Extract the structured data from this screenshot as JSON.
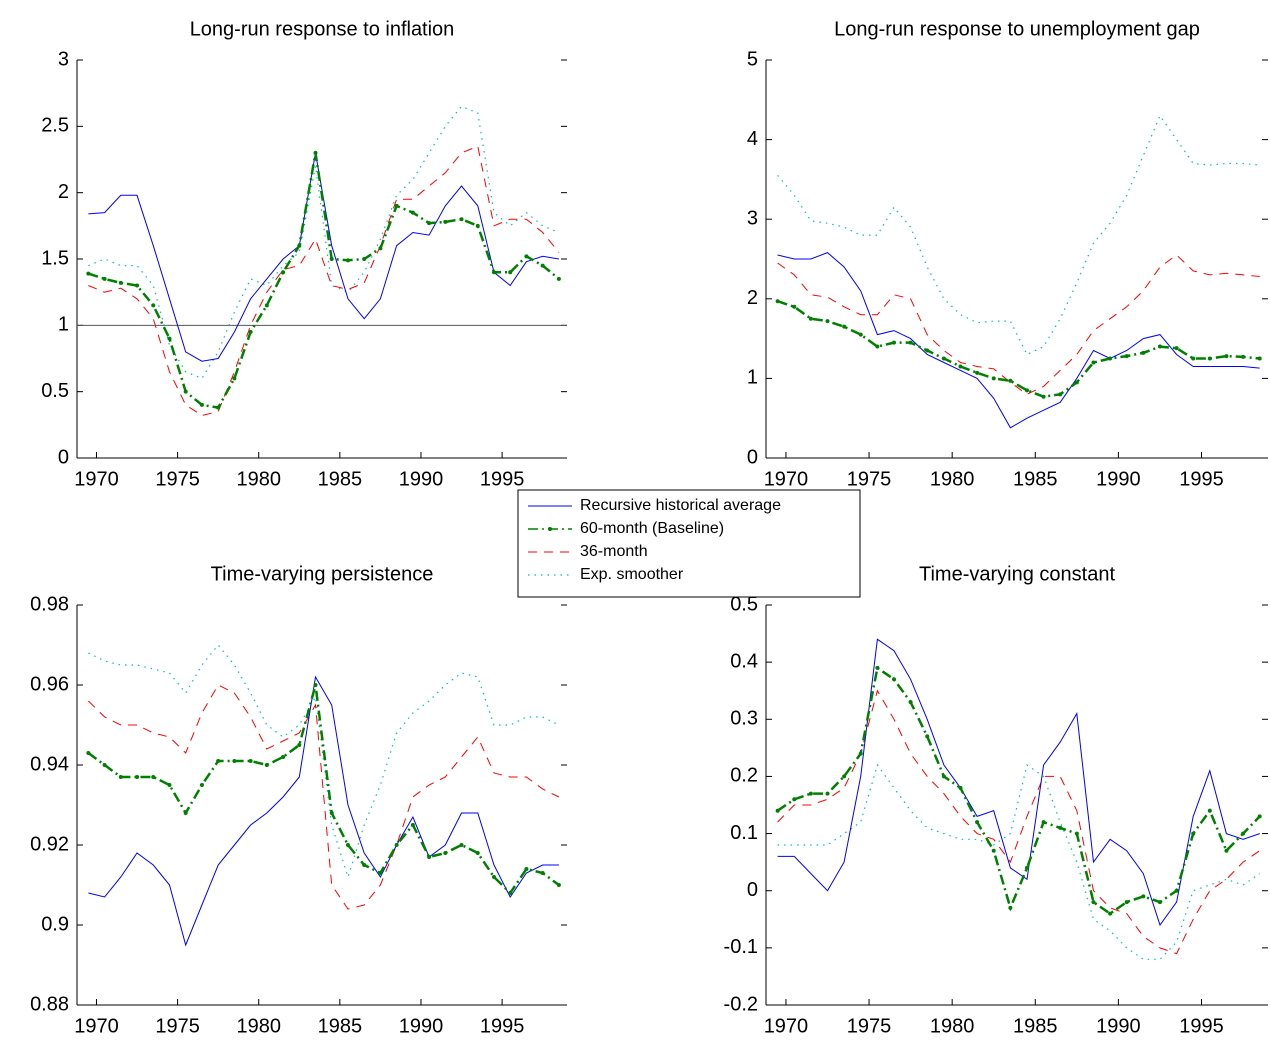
{
  "chart_data": [
    {
      "type": "line",
      "title": "Long-run response to inflation",
      "x": [
        1969.5,
        1970.5,
        1971.5,
        1972.5,
        1973.5,
        1974.5,
        1975.5,
        1976.5,
        1977.5,
        1978.5,
        1979.5,
        1980.5,
        1981.5,
        1982.5,
        1983.5,
        1984.5,
        1985.5,
        1986.5,
        1987.5,
        1988.5,
        1989.5,
        1990.5,
        1991.5,
        1992.5,
        1993.5,
        1994.5,
        1995.5,
        1996.5,
        1997.5,
        1998.5
      ],
      "xlim": [
        1968.8,
        1999
      ],
      "xticks": [
        1970,
        1975,
        1980,
        1985,
        1990,
        1995
      ],
      "ylim": [
        0,
        3
      ],
      "yticks": [
        0,
        0.5,
        1,
        1.5,
        2,
        2.5,
        3
      ],
      "hline": 1,
      "series": [
        {
          "name": "Recursive historical average",
          "color": "#0000ff",
          "values": [
            1.84,
            1.85,
            1.98,
            1.98,
            1.6,
            1.2,
            0.8,
            0.73,
            0.75,
            0.95,
            1.2,
            1.35,
            1.5,
            1.6,
            2.3,
            1.6,
            1.2,
            1.05,
            1.2,
            1.6,
            1.7,
            1.68,
            1.9,
            2.05,
            1.9,
            1.4,
            1.3,
            1.48,
            1.52,
            1.5
          ]
        },
        {
          "name": "60-month (Baseline)",
          "color": "#008000",
          "values": [
            1.39,
            1.35,
            1.32,
            1.3,
            1.15,
            0.9,
            0.5,
            0.4,
            0.38,
            0.6,
            0.95,
            1.15,
            1.4,
            1.6,
            2.3,
            1.5,
            1.49,
            1.5,
            1.58,
            1.9,
            1.85,
            1.77,
            1.78,
            1.8,
            1.75,
            1.4,
            1.4,
            1.52,
            1.45,
            1.35
          ]
        },
        {
          "name": "36-month",
          "color": "#ff0000",
          "values": [
            1.3,
            1.25,
            1.28,
            1.2,
            1.05,
            0.65,
            0.4,
            0.32,
            0.35,
            0.65,
            1.0,
            1.25,
            1.42,
            1.45,
            1.65,
            1.3,
            1.27,
            1.32,
            1.6,
            1.95,
            1.95,
            2.05,
            2.15,
            2.3,
            2.35,
            1.75,
            1.8,
            1.8,
            1.7,
            1.55
          ]
        },
        {
          "name": "Exp. smoother",
          "color": "#00bfbf",
          "values": [
            1.45,
            1.5,
            1.45,
            1.45,
            1.3,
            0.85,
            0.65,
            0.6,
            0.8,
            1.1,
            1.35,
            1.3,
            1.45,
            1.55,
            2.2,
            1.3,
            1.25,
            1.4,
            1.65,
            1.98,
            2.1,
            2.3,
            2.5,
            2.65,
            2.6,
            1.85,
            1.75,
            1.85,
            1.75,
            1.7
          ]
        }
      ]
    },
    {
      "type": "line",
      "title": "Long-run response to unemployment gap",
      "x": [
        1969.5,
        1970.5,
        1971.5,
        1972.5,
        1973.5,
        1974.5,
        1975.5,
        1976.5,
        1977.5,
        1978.5,
        1979.5,
        1980.5,
        1981.5,
        1982.5,
        1983.5,
        1984.5,
        1985.5,
        1986.5,
        1987.5,
        1988.5,
        1989.5,
        1990.5,
        1991.5,
        1992.5,
        1993.5,
        1994.5,
        1995.5,
        1996.5,
        1997.5,
        1998.5
      ],
      "xlim": [
        1968.8,
        1999
      ],
      "xticks": [
        1970,
        1975,
        1980,
        1985,
        1990,
        1995
      ],
      "ylim": [
        0,
        5
      ],
      "yticks": [
        0,
        1,
        2,
        3,
        4,
        5
      ],
      "series": [
        {
          "name": "Recursive historical average",
          "color": "#0000ff",
          "values": [
            2.55,
            2.5,
            2.5,
            2.58,
            2.4,
            2.1,
            1.55,
            1.6,
            1.5,
            1.3,
            1.2,
            1.1,
            1.0,
            0.75,
            0.38,
            0.5,
            0.6,
            0.7,
            1.0,
            1.35,
            1.25,
            1.35,
            1.5,
            1.55,
            1.3,
            1.15,
            1.15,
            1.15,
            1.15,
            1.13
          ]
        },
        {
          "name": "60-month (Baseline)",
          "color": "#008000",
          "values": [
            1.97,
            1.9,
            1.75,
            1.72,
            1.65,
            1.55,
            1.4,
            1.45,
            1.45,
            1.35,
            1.25,
            1.15,
            1.07,
            1.0,
            0.97,
            0.85,
            0.77,
            0.8,
            0.95,
            1.2,
            1.25,
            1.28,
            1.32,
            1.4,
            1.38,
            1.25,
            1.25,
            1.28,
            1.27,
            1.25
          ]
        },
        {
          "name": "36-month",
          "color": "#ff0000",
          "values": [
            2.45,
            2.3,
            2.05,
            2.02,
            1.9,
            1.8,
            1.8,
            2.05,
            2.0,
            1.55,
            1.35,
            1.2,
            1.15,
            1.12,
            0.95,
            0.8,
            0.9,
            1.1,
            1.3,
            1.6,
            1.75,
            1.9,
            2.1,
            2.4,
            2.55,
            2.35,
            2.3,
            2.32,
            2.3,
            2.28
          ]
        },
        {
          "name": "Exp. smoother",
          "color": "#00bfbf",
          "values": [
            3.55,
            3.3,
            2.98,
            2.95,
            2.9,
            2.8,
            2.8,
            3.15,
            2.9,
            2.4,
            2.0,
            1.8,
            1.7,
            1.72,
            1.72,
            1.3,
            1.4,
            1.75,
            2.2,
            2.7,
            2.95,
            3.3,
            3.8,
            4.3,
            4.0,
            3.7,
            3.68,
            3.7,
            3.7,
            3.68
          ]
        }
      ]
    },
    {
      "type": "line",
      "title": "Time-varying persistence",
      "x": [
        1969.5,
        1970.5,
        1971.5,
        1972.5,
        1973.5,
        1974.5,
        1975.5,
        1976.5,
        1977.5,
        1978.5,
        1979.5,
        1980.5,
        1981.5,
        1982.5,
        1983.5,
        1984.5,
        1985.5,
        1986.5,
        1987.5,
        1988.5,
        1989.5,
        1990.5,
        1991.5,
        1992.5,
        1993.5,
        1994.5,
        1995.5,
        1996.5,
        1997.5,
        1998.5
      ],
      "xlim": [
        1968.8,
        1999
      ],
      "xticks": [
        1970,
        1975,
        1980,
        1985,
        1990,
        1995
      ],
      "ylim": [
        0.88,
        0.98
      ],
      "yticks": [
        0.88,
        0.9,
        0.92,
        0.94,
        0.96,
        0.98
      ],
      "series": [
        {
          "name": "Recursive historical average",
          "color": "#0000ff",
          "values": [
            0.908,
            0.907,
            0.912,
            0.918,
            0.915,
            0.91,
            0.895,
            0.905,
            0.915,
            0.92,
            0.925,
            0.928,
            0.932,
            0.937,
            0.962,
            0.955,
            0.93,
            0.918,
            0.912,
            0.92,
            0.927,
            0.917,
            0.92,
            0.928,
            0.928,
            0.915,
            0.907,
            0.913,
            0.915,
            0.915
          ]
        },
        {
          "name": "60-month (Baseline)",
          "color": "#008000",
          "values": [
            0.943,
            0.94,
            0.937,
            0.937,
            0.937,
            0.935,
            0.928,
            0.935,
            0.941,
            0.941,
            0.941,
            0.94,
            0.942,
            0.945,
            0.96,
            0.928,
            0.92,
            0.915,
            0.913,
            0.92,
            0.925,
            0.917,
            0.918,
            0.92,
            0.918,
            0.912,
            0.908,
            0.914,
            0.913,
            0.91
          ]
        },
        {
          "name": "36-month",
          "color": "#ff0000",
          "values": [
            0.956,
            0.952,
            0.95,
            0.95,
            0.948,
            0.947,
            0.943,
            0.953,
            0.96,
            0.958,
            0.952,
            0.944,
            0.946,
            0.948,
            0.955,
            0.91,
            0.904,
            0.905,
            0.91,
            0.92,
            0.932,
            0.935,
            0.937,
            0.942,
            0.947,
            0.938,
            0.937,
            0.937,
            0.934,
            0.932
          ]
        },
        {
          "name": "Exp. smoother",
          "color": "#00bfbf",
          "values": [
            0.968,
            0.966,
            0.965,
            0.965,
            0.964,
            0.963,
            0.958,
            0.965,
            0.97,
            0.965,
            0.958,
            0.95,
            0.947,
            0.95,
            0.957,
            0.925,
            0.912,
            0.925,
            0.935,
            0.948,
            0.953,
            0.956,
            0.96,
            0.963,
            0.962,
            0.95,
            0.95,
            0.952,
            0.952,
            0.95
          ]
        }
      ]
    },
    {
      "type": "line",
      "title": "Time-varying constant",
      "x": [
        1969.5,
        1970.5,
        1971.5,
        1972.5,
        1973.5,
        1974.5,
        1975.5,
        1976.5,
        1977.5,
        1978.5,
        1979.5,
        1980.5,
        1981.5,
        1982.5,
        1983.5,
        1984.5,
        1985.5,
        1986.5,
        1987.5,
        1988.5,
        1989.5,
        1990.5,
        1991.5,
        1992.5,
        1993.5,
        1994.5,
        1995.5,
        1996.5,
        1997.5,
        1998.5
      ],
      "xlim": [
        1968.8,
        1999
      ],
      "xticks": [
        1970,
        1975,
        1980,
        1985,
        1990,
        1995
      ],
      "ylim": [
        -0.2,
        0.5
      ],
      "yticks": [
        -0.2,
        -0.1,
        0,
        0.1,
        0.2,
        0.3,
        0.4,
        0.5
      ],
      "series": [
        {
          "name": "Recursive historical average",
          "color": "#0000ff",
          "values": [
            0.06,
            0.06,
            0.03,
            0,
            0.05,
            0.2,
            0.44,
            0.42,
            0.37,
            0.3,
            0.22,
            0.18,
            0.13,
            0.14,
            0.04,
            0.02,
            0.22,
            0.26,
            0.31,
            0.05,
            0.09,
            0.07,
            0.03,
            -0.06,
            -0.02,
            0.13,
            0.21,
            0.1,
            0.09,
            0.1
          ]
        },
        {
          "name": "60-month (Baseline)",
          "color": "#008000",
          "values": [
            0.14,
            0.16,
            0.17,
            0.17,
            0.2,
            0.24,
            0.39,
            0.37,
            0.33,
            0.27,
            0.2,
            0.18,
            0.12,
            0.07,
            -0.03,
            0.04,
            0.12,
            0.11,
            0.1,
            -0.02,
            -0.04,
            -0.02,
            -0.01,
            -0.02,
            0,
            0.1,
            0.14,
            0.07,
            0.1,
            0.13
          ]
        },
        {
          "name": "36-month",
          "color": "#ff0000",
          "values": [
            0.12,
            0.15,
            0.15,
            0.16,
            0.18,
            0.24,
            0.35,
            0.3,
            0.24,
            0.2,
            0.17,
            0.13,
            0.1,
            0.09,
            0.05,
            0.13,
            0.2,
            0.2,
            0.14,
            0,
            -0.03,
            -0.04,
            -0.08,
            -0.1,
            -0.11,
            -0.05,
            0,
            0.02,
            0.05,
            0.07
          ]
        },
        {
          "name": "Exp. smoother",
          "color": "#00bfbf",
          "values": [
            0.08,
            0.08,
            0.08,
            0.08,
            0.1,
            0.12,
            0.22,
            0.18,
            0.14,
            0.11,
            0.1,
            0.09,
            0.09,
            0.08,
            0.1,
            0.22,
            0.2,
            0.12,
            0.05,
            -0.05,
            -0.07,
            -0.1,
            -0.12,
            -0.12,
            -0.09,
            0,
            0.01,
            0.02,
            0.01,
            0.03
          ]
        }
      ]
    }
  ]
}
